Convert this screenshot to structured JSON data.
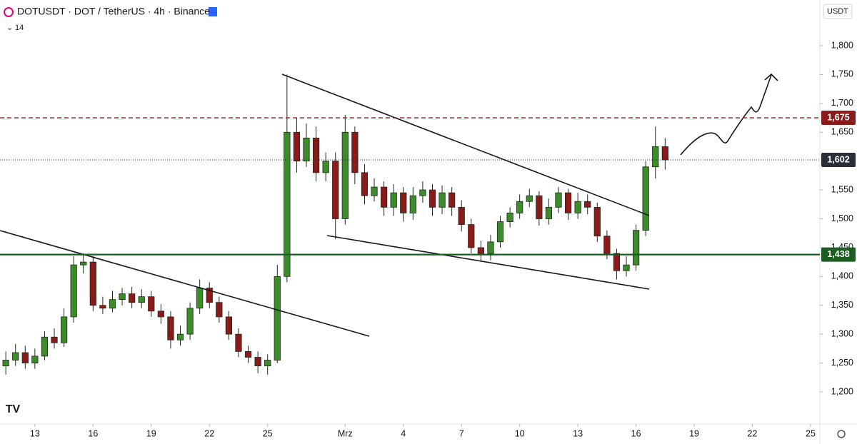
{
  "chart_data": {
    "type": "candlestick",
    "title": "DOTUSDT · DOT / TetherUS · 4h · Binance",
    "indicator_label": "14",
    "currency": "USDT",
    "up_color": "#3c8c2c",
    "down_color": "#8b1a1a",
    "xlim": [
      -1.8,
      40.48
    ],
    "ylim": [
      1144.3,
      1879.2
    ],
    "grid": false,
    "xticks": [
      {
        "value": 0,
        "label": "13"
      },
      {
        "value": 3,
        "label": "16"
      },
      {
        "value": 6,
        "label": "19"
      },
      {
        "value": 9,
        "label": "22"
      },
      {
        "value": 12,
        "label": "25"
      },
      {
        "value": 16,
        "label": "Mrz"
      },
      {
        "value": 19,
        "label": "4"
      },
      {
        "value": 22,
        "label": "7"
      },
      {
        "value": 25,
        "label": "10"
      },
      {
        "value": 28,
        "label": "13"
      },
      {
        "value": 31,
        "label": "16"
      },
      {
        "value": 34,
        "label": "19"
      },
      {
        "value": 37,
        "label": "22"
      },
      {
        "value": 40,
        "label": "25"
      }
    ],
    "yticks": [
      {
        "value": 1200,
        "label": "1,200"
      },
      {
        "value": 1250,
        "label": "1,250"
      },
      {
        "value": 1300,
        "label": "1,300"
      },
      {
        "value": 1350,
        "label": "1,350"
      },
      {
        "value": 1400,
        "label": "1,400"
      },
      {
        "value": 1450,
        "label": "1,450"
      },
      {
        "value": 1500,
        "label": "1,500"
      },
      {
        "value": 1550,
        "label": "1,550"
      },
      {
        "value": 1650,
        "label": "1,650"
      },
      {
        "value": 1700,
        "label": "1,700"
      },
      {
        "value": 1750,
        "label": "1,750"
      },
      {
        "value": 1800,
        "label": "1,800"
      }
    ],
    "levels": [
      {
        "value": 1675,
        "label": "1,675",
        "color": "#8b1a1a",
        "style": "dashed"
      },
      {
        "value": 1602,
        "label": "1,602",
        "color": "#2a2e39",
        "style": "dotted"
      },
      {
        "value": 1438,
        "label": "1,438",
        "color": "#1b5e20",
        "style": "solid"
      }
    ],
    "x": [
      -1.5,
      -1,
      -0.5,
      0,
      0.5,
      1,
      1.5,
      2,
      2.5,
      3,
      3.5,
      4,
      4.5,
      5,
      5.5,
      6,
      6.5,
      7,
      7.5,
      8,
      8.5,
      9,
      9.5,
      10,
      10.5,
      11,
      11.5,
      12,
      12.5,
      13,
      13.5,
      14,
      14.5,
      15,
      15.5,
      16,
      16.5,
      17,
      17.5,
      18,
      18.5,
      19,
      19.5,
      20,
      20.5,
      21,
      21.5,
      22,
      22.5,
      23,
      23.5,
      24,
      24.5,
      25,
      25.5,
      26,
      26.5,
      27,
      27.5,
      28,
      28.5,
      29,
      29.5,
      30,
      30.5,
      31,
      31.5,
      32,
      32.5
    ],
    "open": [
      1245,
      1255,
      1268,
      1250,
      1262,
      1295,
      1285,
      1330,
      1420,
      1425,
      1350,
      1345,
      1360,
      1370,
      1355,
      1365,
      1340,
      1330,
      1290,
      1300,
      1345,
      1380,
      1355,
      1330,
      1300,
      1270,
      1260,
      1245,
      1255,
      1400,
      1650,
      1600,
      1640,
      1580,
      1600,
      1500,
      1650,
      1580,
      1540,
      1555,
      1520,
      1545,
      1510,
      1540,
      1550,
      1520,
      1545,
      1520,
      1490,
      1450,
      1440,
      1460,
      1495,
      1510,
      1530,
      1540,
      1500,
      1520,
      1545,
      1510,
      1530,
      1520,
      1470,
      1440,
      1410,
      1420,
      1480,
      1590,
      1625
    ],
    "high": [
      1270,
      1283,
      1280,
      1275,
      1305,
      1310,
      1345,
      1435,
      1440,
      1435,
      1365,
      1375,
      1380,
      1382,
      1378,
      1375,
      1352,
      1340,
      1315,
      1355,
      1395,
      1390,
      1365,
      1340,
      1310,
      1280,
      1270,
      1265,
      1420,
      1750,
      1675,
      1665,
      1660,
      1615,
      1615,
      1680,
      1660,
      1595,
      1570,
      1565,
      1560,
      1555,
      1555,
      1565,
      1560,
      1558,
      1555,
      1532,
      1500,
      1462,
      1472,
      1505,
      1520,
      1542,
      1552,
      1548,
      1535,
      1555,
      1552,
      1545,
      1542,
      1528,
      1480,
      1448,
      1435,
      1490,
      1600,
      1660,
      1640
    ],
    "low": [
      1230,
      1245,
      1240,
      1240,
      1255,
      1275,
      1278,
      1320,
      1405,
      1340,
      1335,
      1338,
      1350,
      1345,
      1345,
      1330,
      1318,
      1275,
      1280,
      1290,
      1335,
      1345,
      1320,
      1290,
      1260,
      1250,
      1232,
      1230,
      1250,
      1390,
      1580,
      1590,
      1565,
      1565,
      1465,
      1490,
      1560,
      1525,
      1530,
      1505,
      1505,
      1495,
      1498,
      1528,
      1505,
      1508,
      1505,
      1478,
      1440,
      1425,
      1428,
      1450,
      1485,
      1500,
      1520,
      1488,
      1490,
      1510,
      1498,
      1500,
      1508,
      1460,
      1430,
      1395,
      1400,
      1410,
      1470,
      1570,
      1585
    ],
    "close": [
      1255,
      1268,
      1250,
      1262,
      1295,
      1285,
      1330,
      1420,
      1425,
      1350,
      1345,
      1360,
      1370,
      1355,
      1365,
      1340,
      1330,
      1290,
      1300,
      1345,
      1380,
      1355,
      1330,
      1300,
      1270,
      1260,
      1245,
      1255,
      1400,
      1650,
      1600,
      1640,
      1580,
      1600,
      1500,
      1650,
      1580,
      1540,
      1555,
      1520,
      1545,
      1510,
      1540,
      1550,
      1520,
      1545,
      1520,
      1490,
      1450,
      1440,
      1460,
      1495,
      1510,
      1530,
      1540,
      1500,
      1520,
      1545,
      1510,
      1530,
      1520,
      1470,
      1440,
      1410,
      1420,
      1480,
      1590,
      1625,
      1602
    ]
  }
}
